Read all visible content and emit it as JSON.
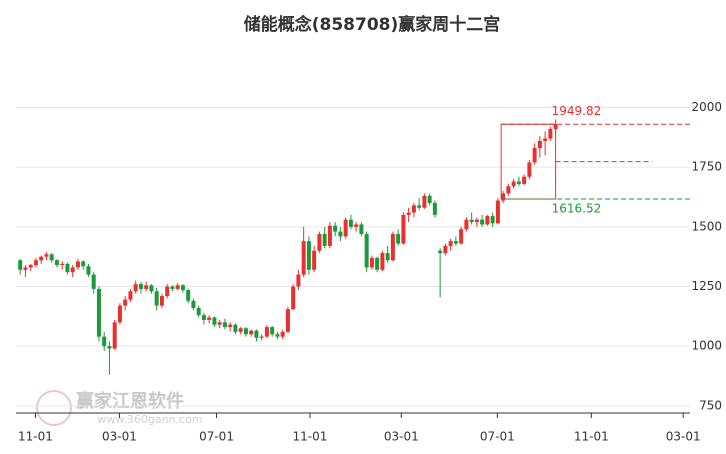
{
  "chart_data": {
    "type": "candlestick",
    "title": "储能概念(858708)赢家周十二宫",
    "up_color": "#e8302f",
    "down_color": "#1a9a3a",
    "xlim": [
      -0.8,
      127.6
    ],
    "ylim": [
      720,
      2220
    ],
    "xticks": [
      {
        "value": 2.9,
        "label": "11-01"
      },
      {
        "value": 18.9,
        "label": "03-01"
      },
      {
        "value": 37.4,
        "label": "07-01"
      },
      {
        "value": 55.2,
        "label": "11-01"
      },
      {
        "value": 72.6,
        "label": "03-01"
      },
      {
        "value": 90.9,
        "label": "07-01"
      },
      {
        "value": 108.8,
        "label": "11-01"
      },
      {
        "value": 126.3,
        "label": "03-01"
      }
    ],
    "yticks": [
      750,
      1000,
      1250,
      1500,
      1750,
      2000
    ],
    "grid": true,
    "ohlc": [
      [
        1360,
        1365,
        1300,
        1320
      ],
      [
        1320,
        1340,
        1290,
        1330
      ],
      [
        1330,
        1345,
        1315,
        1340
      ],
      [
        1340,
        1370,
        1330,
        1360
      ],
      [
        1360,
        1380,
        1345,
        1375
      ],
      [
        1375,
        1395,
        1360,
        1385
      ],
      [
        1385,
        1390,
        1350,
        1360
      ],
      [
        1360,
        1365,
        1330,
        1340
      ],
      [
        1340,
        1355,
        1320,
        1345
      ],
      [
        1345,
        1350,
        1300,
        1310
      ],
      [
        1310,
        1340,
        1290,
        1330
      ],
      [
        1330,
        1365,
        1320,
        1355
      ],
      [
        1355,
        1360,
        1320,
        1335
      ],
      [
        1335,
        1345,
        1290,
        1300
      ],
      [
        1300,
        1310,
        1220,
        1240
      ],
      [
        1240,
        1250,
        1020,
        1040
      ],
      [
        1040,
        1060,
        980,
        1000
      ],
      [
        1000,
        1020,
        880,
        990
      ],
      [
        990,
        1110,
        985,
        1100
      ],
      [
        1100,
        1180,
        1090,
        1170
      ],
      [
        1170,
        1210,
        1150,
        1195
      ],
      [
        1195,
        1240,
        1185,
        1230
      ],
      [
        1230,
        1275,
        1220,
        1260
      ],
      [
        1260,
        1270,
        1220,
        1240
      ],
      [
        1240,
        1270,
        1230,
        1255
      ],
      [
        1255,
        1260,
        1220,
        1230
      ],
      [
        1230,
        1245,
        1150,
        1170
      ],
      [
        1170,
        1220,
        1160,
        1210
      ],
      [
        1210,
        1260,
        1200,
        1250
      ],
      [
        1250,
        1255,
        1230,
        1240
      ],
      [
        1240,
        1265,
        1235,
        1255
      ],
      [
        1255,
        1260,
        1225,
        1235
      ],
      [
        1235,
        1240,
        1180,
        1190
      ],
      [
        1190,
        1200,
        1150,
        1160
      ],
      [
        1160,
        1170,
        1120,
        1130
      ],
      [
        1130,
        1140,
        1090,
        1110
      ],
      [
        1110,
        1130,
        1095,
        1120
      ],
      [
        1120,
        1125,
        1080,
        1090
      ],
      [
        1090,
        1110,
        1075,
        1100
      ],
      [
        1100,
        1115,
        1070,
        1080
      ],
      [
        1080,
        1100,
        1060,
        1090
      ],
      [
        1090,
        1095,
        1050,
        1060
      ],
      [
        1060,
        1080,
        1050,
        1075
      ],
      [
        1075,
        1080,
        1040,
        1050
      ],
      [
        1050,
        1070,
        1040,
        1065
      ],
      [
        1065,
        1070,
        1020,
        1035
      ],
      [
        1035,
        1050,
        1025,
        1040
      ],
      [
        1040,
        1090,
        1035,
        1080
      ],
      [
        1080,
        1085,
        1040,
        1050
      ],
      [
        1050,
        1060,
        1030,
        1040
      ],
      [
        1040,
        1070,
        1030,
        1060
      ],
      [
        1060,
        1165,
        1055,
        1155
      ],
      [
        1155,
        1260,
        1150,
        1250
      ],
      [
        1250,
        1320,
        1235,
        1300
      ],
      [
        1300,
        1500,
        1290,
        1440
      ],
      [
        1440,
        1460,
        1300,
        1320
      ],
      [
        1320,
        1420,
        1310,
        1400
      ],
      [
        1400,
        1480,
        1390,
        1470
      ],
      [
        1470,
        1500,
        1410,
        1420
      ],
      [
        1420,
        1520,
        1410,
        1505
      ],
      [
        1505,
        1520,
        1460,
        1480
      ],
      [
        1480,
        1500,
        1440,
        1460
      ],
      [
        1460,
        1540,
        1450,
        1530
      ],
      [
        1530,
        1550,
        1490,
        1500
      ],
      [
        1500,
        1520,
        1480,
        1510
      ],
      [
        1510,
        1520,
        1460,
        1470
      ],
      [
        1470,
        1480,
        1310,
        1330
      ],
      [
        1330,
        1380,
        1320,
        1370
      ],
      [
        1370,
        1375,
        1310,
        1320
      ],
      [
        1320,
        1400,
        1315,
        1390
      ],
      [
        1390,
        1420,
        1350,
        1360
      ],
      [
        1360,
        1480,
        1355,
        1470
      ],
      [
        1470,
        1490,
        1420,
        1430
      ],
      [
        1430,
        1560,
        1425,
        1550
      ],
      [
        1550,
        1580,
        1520,
        1560
      ],
      [
        1560,
        1600,
        1540,
        1590
      ],
      [
        1590,
        1620,
        1570,
        1580
      ],
      [
        1580,
        1640,
        1575,
        1630
      ],
      [
        1630,
        1640,
        1590,
        1600
      ],
      [
        1600,
        1610,
        1540,
        1550
      ],
      [
        1400,
        1410,
        1205,
        1390
      ],
      [
        1390,
        1430,
        1380,
        1420
      ],
      [
        1420,
        1450,
        1400,
        1440
      ],
      [
        1440,
        1460,
        1420,
        1430
      ],
      [
        1430,
        1500,
        1425,
        1490
      ],
      [
        1490,
        1540,
        1480,
        1530
      ],
      [
        1530,
        1560,
        1510,
        1520
      ],
      [
        1520,
        1540,
        1500,
        1530
      ],
      [
        1530,
        1550,
        1500,
        1510
      ],
      [
        1510,
        1550,
        1505,
        1545
      ],
      [
        1545,
        1560,
        1500,
        1515
      ],
      [
        1515,
        1620,
        1510,
        1610
      ],
      [
        1610,
        1650,
        1600,
        1640
      ],
      [
        1640,
        1680,
        1630,
        1670
      ],
      [
        1670,
        1700,
        1660,
        1690
      ],
      [
        1690,
        1710,
        1670,
        1680
      ],
      [
        1680,
        1720,
        1675,
        1710
      ],
      [
        1710,
        1780,
        1700,
        1770
      ],
      [
        1770,
        1850,
        1760,
        1830
      ],
      [
        1830,
        1880,
        1790,
        1860
      ],
      [
        1860,
        1900,
        1800,
        1870
      ],
      [
        1870,
        1920,
        1860,
        1910
      ],
      [
        1910,
        1949.82,
        1890,
        1930
      ]
    ],
    "high": 1949.82,
    "low": 1616.52,
    "box_top": 1930,
    "mid_level": 1773,
    "watermark": "赢家江恩软件",
    "watermark_url": "www.360gann.com"
  }
}
